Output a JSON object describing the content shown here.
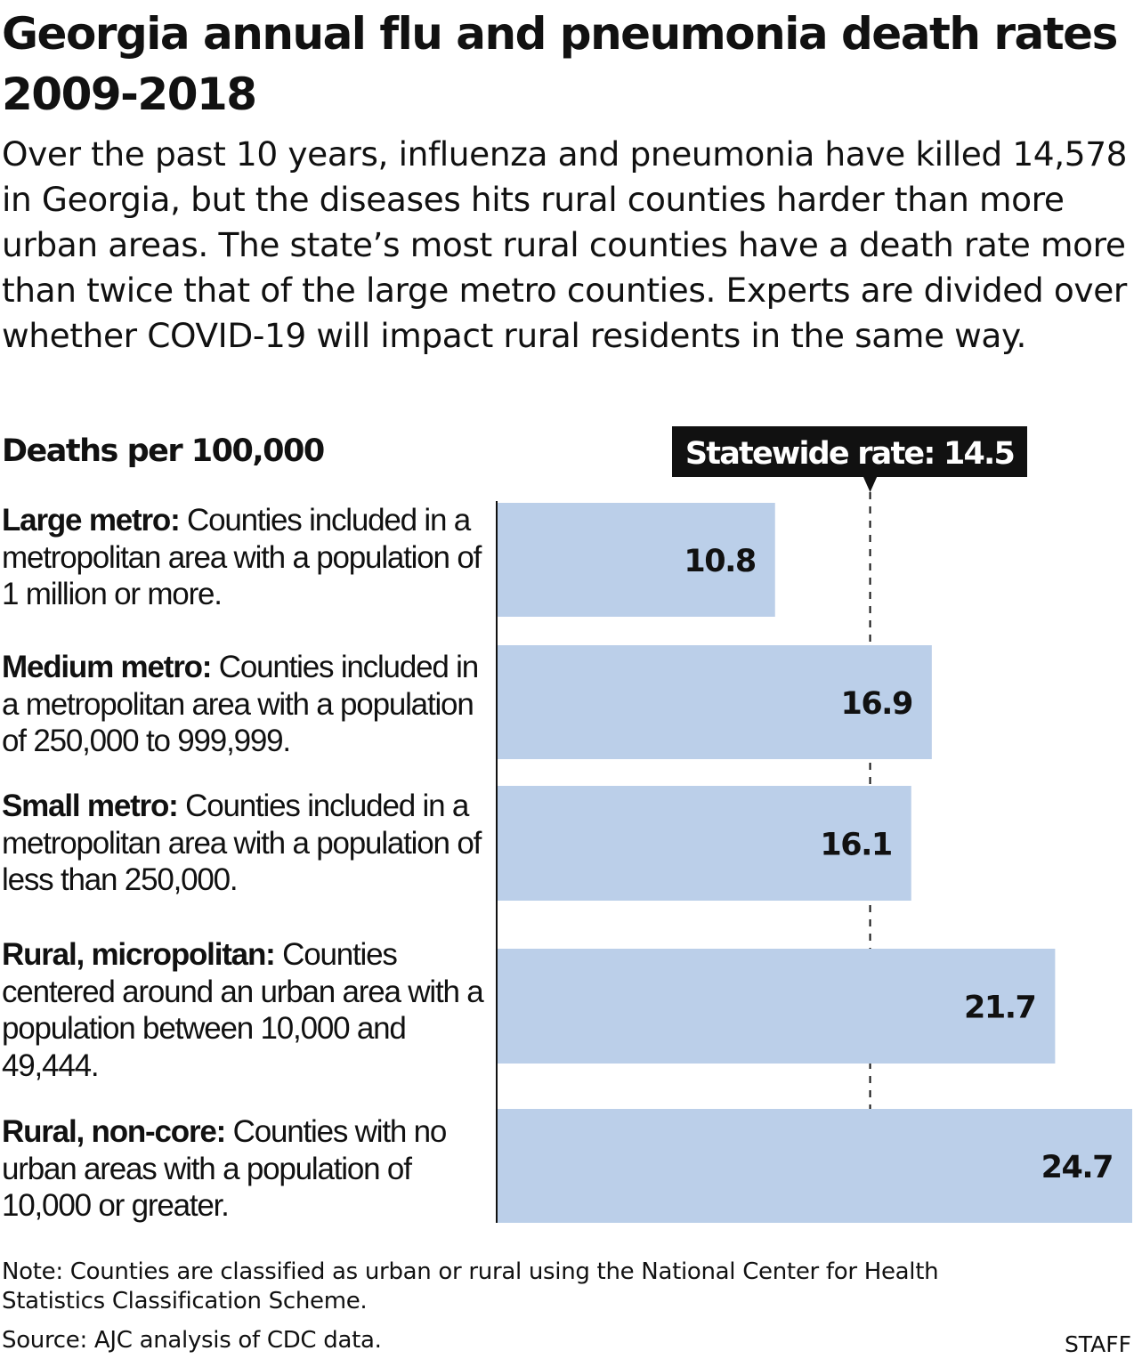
{
  "title": "Georgia annual flu and pneumonia death rates 2009-2018",
  "subtitle": "Over the past 10 years, influenza and pneumonia have killed 14,578 in Georgia, but the diseases hits rural counties harder than more urban areas. The state’s most rural counties have a death rate more than twice that of the large metro counties. Experts are divided over whether COVID-19 will impact rural residents in the same way.",
  "categories": [
    {
      "label": "Large metro:",
      "description": " Counties included in a metropolitan area with a population of 1 million or more."
    },
    {
      "label": "Medium metro:",
      "description": " Counties included in a metropolitan area with a population of 250,000 to 999,999."
    },
    {
      "label": "Small metro:",
      "description": " Counties included in a metropolitan area with a population of less than 250,000."
    },
    {
      "label": "Rural, micropolitan:",
      "description": " Counties centered around an urban area with a population between 10,000 and 49,444."
    },
    {
      "label": "Rural, non-core:",
      "description": " Counties with no urban areas with a population of 10,000 or greater."
    }
  ],
  "chart_data": {
    "type": "bar",
    "orientation": "horizontal",
    "ylabel": "Deaths per 100,000",
    "categories": [
      "Large metro",
      "Medium metro",
      "Small metro",
      "Rural, micropolitan",
      "Rural, non-core"
    ],
    "values": [
      10.8,
      16.9,
      16.1,
      21.7,
      24.7
    ],
    "value_labels": [
      "10.8",
      "16.9",
      "16.1",
      "21.7",
      "24.7"
    ],
    "xlim": [
      0,
      24.7
    ],
    "grid": false,
    "bar_color": "#bbcfe9",
    "reference_line": {
      "value": 14.5,
      "label": "Statewide rate: 14.5",
      "style": "dashed"
    }
  },
  "note": "Note: Counties are classified as urban or rural using the National Center for Health Statistics Classification Scheme.",
  "source": "Source: AJC analysis of CDC data.",
  "credit": "STAFF"
}
